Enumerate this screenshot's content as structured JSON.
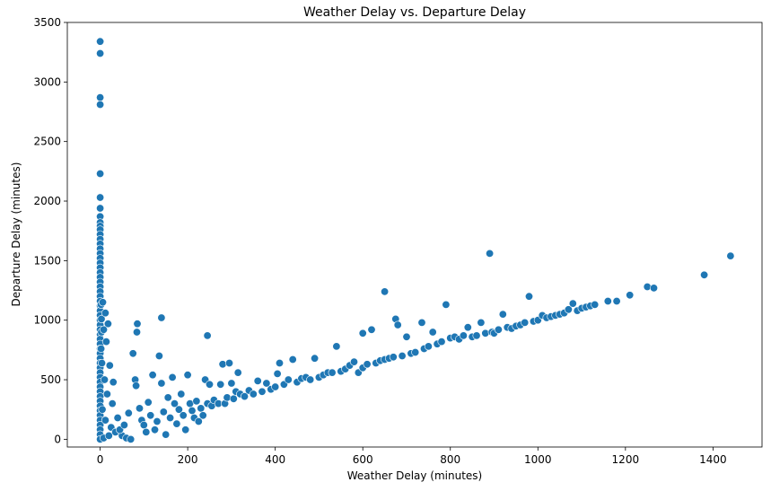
{
  "chart_data": {
    "type": "scatter",
    "title": "Weather Delay vs. Departure Delay",
    "xlabel": "Weather Delay (minutes)",
    "ylabel": "Departure Delay (minutes)",
    "xlim": [
      -75,
      1512
    ],
    "ylim": [
      -65,
      3500
    ],
    "xticks": [
      0,
      200,
      400,
      600,
      800,
      1000,
      1200,
      1400
    ],
    "yticks": [
      0,
      500,
      1000,
      1500,
      2000,
      2500,
      3000,
      3500
    ],
    "grid": false,
    "color": "#1f77b4",
    "marker": "circle",
    "points": [
      [
        0,
        3340
      ],
      [
        0,
        3240
      ],
      [
        0,
        2870
      ],
      [
        0,
        2810
      ],
      [
        0,
        2230
      ],
      [
        0,
        2030
      ],
      [
        0,
        1940
      ],
      [
        0,
        1870
      ],
      [
        0,
        1820
      ],
      [
        0,
        1790
      ],
      [
        0,
        1760
      ],
      [
        0,
        1720
      ],
      [
        0,
        1680
      ],
      [
        0,
        1640
      ],
      [
        0,
        1600
      ],
      [
        0,
        1560
      ],
      [
        0,
        1520
      ],
      [
        0,
        1480
      ],
      [
        0,
        1440
      ],
      [
        0,
        1400
      ],
      [
        0,
        1360
      ],
      [
        0,
        1320
      ],
      [
        0,
        1280
      ],
      [
        0,
        1240
      ],
      [
        0,
        1200
      ],
      [
        0,
        1160
      ],
      [
        0,
        1120
      ],
      [
        0,
        1080
      ],
      [
        0,
        1040
      ],
      [
        0,
        1000
      ],
      [
        0,
        960
      ],
      [
        0,
        920
      ],
      [
        0,
        880
      ],
      [
        0,
        840
      ],
      [
        0,
        800
      ],
      [
        0,
        760
      ],
      [
        0,
        720
      ],
      [
        0,
        680
      ],
      [
        0,
        640
      ],
      [
        0,
        600
      ],
      [
        0,
        560
      ],
      [
        0,
        520
      ],
      [
        0,
        480
      ],
      [
        0,
        440
      ],
      [
        0,
        400
      ],
      [
        0,
        360
      ],
      [
        0,
        320
      ],
      [
        0,
        280
      ],
      [
        0,
        240
      ],
      [
        0,
        200
      ],
      [
        0,
        160
      ],
      [
        0,
        120
      ],
      [
        0,
        80
      ],
      [
        0,
        40
      ],
      [
        0,
        0
      ],
      [
        3,
        1010
      ],
      [
        2,
        1130
      ],
      [
        3,
        900
      ],
      [
        2,
        760
      ],
      [
        4,
        640
      ],
      [
        12,
        1060
      ],
      [
        18,
        970
      ],
      [
        8,
        920
      ],
      [
        14,
        820
      ],
      [
        22,
        620
      ],
      [
        10,
        500
      ],
      [
        30,
        480
      ],
      [
        6,
        1150
      ],
      [
        16,
        380
      ],
      [
        28,
        300
      ],
      [
        5,
        250
      ],
      [
        40,
        180
      ],
      [
        12,
        160
      ],
      [
        25,
        100
      ],
      [
        35,
        60
      ],
      [
        50,
        30
      ],
      [
        60,
        10
      ],
      [
        70,
        0
      ],
      [
        8,
        10
      ],
      [
        45,
        80
      ],
      [
        55,
        120
      ],
      [
        20,
        30
      ],
      [
        65,
        220
      ],
      [
        75,
        720
      ],
      [
        80,
        500
      ],
      [
        82,
        450
      ],
      [
        84,
        900
      ],
      [
        85,
        970
      ],
      [
        90,
        260
      ],
      [
        95,
        160
      ],
      [
        100,
        120
      ],
      [
        105,
        60
      ],
      [
        110,
        310
      ],
      [
        115,
        200
      ],
      [
        120,
        540
      ],
      [
        125,
        80
      ],
      [
        130,
        150
      ],
      [
        135,
        700
      ],
      [
        140,
        1020
      ],
      [
        140,
        470
      ],
      [
        145,
        230
      ],
      [
        150,
        40
      ],
      [
        155,
        350
      ],
      [
        160,
        180
      ],
      [
        165,
        520
      ],
      [
        170,
        300
      ],
      [
        175,
        130
      ],
      [
        180,
        250
      ],
      [
        185,
        380
      ],
      [
        190,
        200
      ],
      [
        195,
        80
      ],
      [
        200,
        540
      ],
      [
        205,
        300
      ],
      [
        210,
        240
      ],
      [
        215,
        180
      ],
      [
        220,
        320
      ],
      [
        225,
        150
      ],
      [
        230,
        260
      ],
      [
        235,
        200
      ],
      [
        240,
        500
      ],
      [
        245,
        870
      ],
      [
        245,
        300
      ],
      [
        250,
        460
      ],
      [
        255,
        280
      ],
      [
        260,
        330
      ],
      [
        270,
        300
      ],
      [
        275,
        460
      ],
      [
        280,
        630
      ],
      [
        285,
        300
      ],
      [
        290,
        350
      ],
      [
        295,
        640
      ],
      [
        300,
        470
      ],
      [
        305,
        340
      ],
      [
        310,
        400
      ],
      [
        315,
        560
      ],
      [
        320,
        380
      ],
      [
        330,
        360
      ],
      [
        340,
        410
      ],
      [
        350,
        380
      ],
      [
        360,
        490
      ],
      [
        370,
        400
      ],
      [
        380,
        470
      ],
      [
        390,
        420
      ],
      [
        400,
        440
      ],
      [
        405,
        550
      ],
      [
        410,
        640
      ],
      [
        420,
        460
      ],
      [
        430,
        500
      ],
      [
        440,
        670
      ],
      [
        450,
        480
      ],
      [
        460,
        510
      ],
      [
        470,
        520
      ],
      [
        480,
        500
      ],
      [
        490,
        680
      ],
      [
        500,
        520
      ],
      [
        510,
        540
      ],
      [
        520,
        560
      ],
      [
        530,
        560
      ],
      [
        540,
        780
      ],
      [
        550,
        570
      ],
      [
        560,
        590
      ],
      [
        570,
        620
      ],
      [
        580,
        650
      ],
      [
        590,
        560
      ],
      [
        600,
        600
      ],
      [
        600,
        890
      ],
      [
        610,
        630
      ],
      [
        620,
        920
      ],
      [
        630,
        640
      ],
      [
        640,
        660
      ],
      [
        650,
        1240
      ],
      [
        650,
        670
      ],
      [
        660,
        680
      ],
      [
        670,
        690
      ],
      [
        675,
        1010
      ],
      [
        680,
        960
      ],
      [
        690,
        700
      ],
      [
        700,
        860
      ],
      [
        710,
        720
      ],
      [
        720,
        730
      ],
      [
        735,
        980
      ],
      [
        740,
        760
      ],
      [
        750,
        780
      ],
      [
        760,
        900
      ],
      [
        770,
        800
      ],
      [
        780,
        820
      ],
      [
        790,
        1130
      ],
      [
        800,
        850
      ],
      [
        810,
        860
      ],
      [
        820,
        840
      ],
      [
        830,
        870
      ],
      [
        840,
        940
      ],
      [
        850,
        860
      ],
      [
        860,
        870
      ],
      [
        870,
        980
      ],
      [
        880,
        890
      ],
      [
        890,
        1560
      ],
      [
        895,
        900
      ],
      [
        900,
        890
      ],
      [
        910,
        920
      ],
      [
        920,
        1050
      ],
      [
        930,
        940
      ],
      [
        940,
        930
      ],
      [
        950,
        950
      ],
      [
        960,
        960
      ],
      [
        970,
        980
      ],
      [
        980,
        1200
      ],
      [
        990,
        990
      ],
      [
        1000,
        1000
      ],
      [
        1010,
        1040
      ],
      [
        1020,
        1020
      ],
      [
        1030,
        1030
      ],
      [
        1040,
        1040
      ],
      [
        1050,
        1050
      ],
      [
        1060,
        1060
      ],
      [
        1070,
        1090
      ],
      [
        1080,
        1140
      ],
      [
        1090,
        1080
      ],
      [
        1100,
        1100
      ],
      [
        1110,
        1110
      ],
      [
        1120,
        1120
      ],
      [
        1130,
        1130
      ],
      [
        1160,
        1160
      ],
      [
        1180,
        1160
      ],
      [
        1210,
        1210
      ],
      [
        1250,
        1280
      ],
      [
        1265,
        1270
      ],
      [
        1380,
        1380
      ],
      [
        1440,
        1540
      ]
    ]
  }
}
